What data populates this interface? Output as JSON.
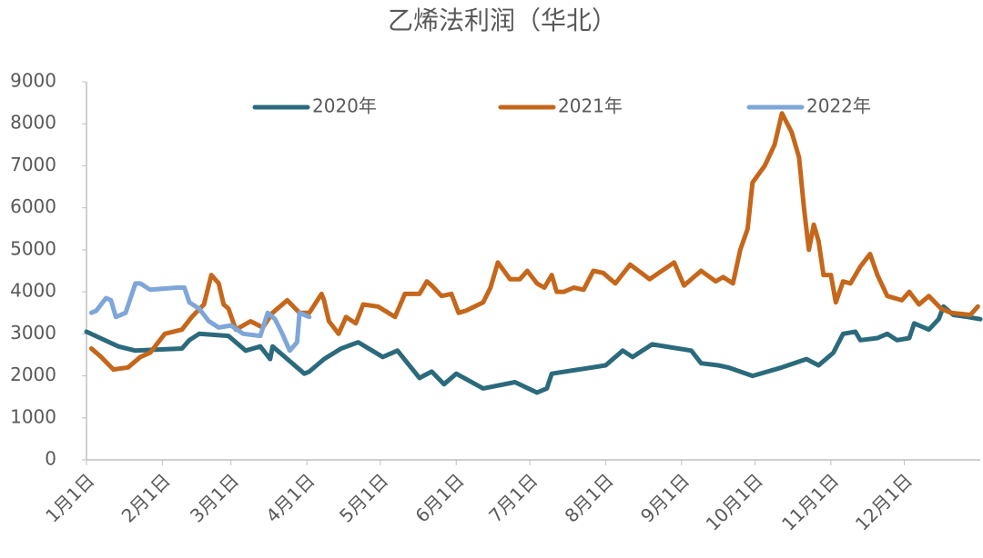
{
  "chart_data": {
    "type": "line",
    "title": "乙烯法利润（华北）",
    "xlim": [
      0,
      365
    ],
    "xticks": [
      {
        "value": 0,
        "label": "1月1日"
      },
      {
        "value": 31,
        "label": "2月1日"
      },
      {
        "value": 59,
        "label": "3月1日"
      },
      {
        "value": 90,
        "label": "4月1日"
      },
      {
        "value": 120,
        "label": "5月1日"
      },
      {
        "value": 151,
        "label": "6月1日"
      },
      {
        "value": 181,
        "label": "7月1日"
      },
      {
        "value": 212,
        "label": "8月1日"
      },
      {
        "value": 243,
        "label": "9月1日"
      },
      {
        "value": 273,
        "label": "10月1日"
      },
      {
        "value": 304,
        "label": "11月1日"
      },
      {
        "value": 334,
        "label": "12月1日"
      }
    ],
    "ylim": [
      0,
      9000
    ],
    "yticks": [
      0,
      1000,
      2000,
      3000,
      4000,
      5000,
      6000,
      7000,
      8000,
      9000
    ],
    "grid": false,
    "legend": "top",
    "series": [
      {
        "name": "2020年",
        "color": "#2b6a7c",
        "x": [
          0,
          13,
          20,
          39,
          42,
          46,
          58,
          65,
          71,
          75,
          76,
          80,
          84,
          89,
          91,
          97,
          104,
          111,
          121,
          127,
          136,
          141,
          146,
          151,
          162,
          175,
          184,
          188,
          190,
          212,
          219,
          223,
          231,
          247,
          251,
          258,
          262,
          272,
          284,
          294,
          299,
          305,
          309,
          314,
          316,
          323,
          327,
          331,
          336,
          338,
          344,
          348,
          350,
          354,
          360,
          365
        ],
        "values": [
          3050,
          2700,
          2600,
          2650,
          2850,
          3000,
          2950,
          2600,
          2700,
          2400,
          2700,
          2500,
          2300,
          2050,
          2100,
          2400,
          2650,
          2800,
          2450,
          2600,
          1950,
          2100,
          1800,
          2050,
          1700,
          1850,
          1600,
          1700,
          2050,
          2250,
          2600,
          2450,
          2750,
          2600,
          2300,
          2250,
          2200,
          2000,
          2200,
          2400,
          2250,
          2550,
          3000,
          3050,
          2850,
          2900,
          3000,
          2850,
          2900,
          3250,
          3100,
          3350,
          3650,
          3450,
          3400,
          3350
        ]
      },
      {
        "name": "2021年",
        "color": "#c5671b",
        "x": [
          2,
          6,
          11,
          17,
          22,
          26,
          32,
          39,
          43,
          48,
          51,
          54,
          56,
          58,
          61,
          67,
          72,
          76,
          82,
          87,
          91,
          96,
          97,
          99,
          103,
          106,
          110,
          113,
          119,
          126,
          130,
          136,
          139,
          141,
          145,
          149,
          152,
          155,
          162,
          165,
          168,
          173,
          177,
          180,
          184,
          187,
          190,
          192,
          195,
          199,
          203,
          207,
          211,
          216,
          222,
          230,
          240,
          244,
          247,
          251,
          257,
          260,
          264,
          267,
          270,
          272,
          277,
          281,
          284,
          288,
          291,
          293,
          295,
          297,
          299,
          301,
          304,
          306,
          309,
          312,
          316,
          320,
          323,
          327,
          333,
          336,
          340,
          344,
          349,
          353,
          361,
          364
        ],
        "values": [
          2650,
          2450,
          2150,
          2200,
          2450,
          2550,
          3000,
          3100,
          3400,
          3700,
          4400,
          4200,
          3700,
          3600,
          3100,
          3300,
          3150,
          3500,
          3800,
          3500,
          3500,
          3950,
          3800,
          3300,
          3000,
          3400,
          3250,
          3700,
          3650,
          3400,
          3950,
          3950,
          4250,
          4150,
          3900,
          3950,
          3500,
          3550,
          3750,
          4100,
          4700,
          4300,
          4300,
          4500,
          4200,
          4100,
          4400,
          4000,
          4000,
          4100,
          4050,
          4500,
          4450,
          4200,
          4650,
          4300,
          4700,
          4150,
          4300,
          4500,
          4250,
          4350,
          4200,
          5000,
          5500,
          6600,
          7000,
          7500,
          8250,
          7800,
          7200,
          6000,
          5000,
          5600,
          5200,
          4400,
          4400,
          3750,
          4250,
          4200,
          4600,
          4900,
          4400,
          3900,
          3800,
          4000,
          3700,
          3900,
          3600,
          3500,
          3450,
          3650
        ]
      },
      {
        "name": "2022年",
        "color": "#7ea6d8",
        "x": [
          2,
          4,
          8,
          10,
          12,
          16,
          20,
          22,
          26,
          37,
          40,
          42,
          46,
          50,
          54,
          59,
          64,
          71,
          74,
          77,
          80,
          83,
          86,
          87,
          91
        ],
        "values": [
          3500,
          3550,
          3850,
          3800,
          3400,
          3500,
          4200,
          4200,
          4050,
          4100,
          4100,
          3750,
          3600,
          3300,
          3150,
          3200,
          3000,
          2950,
          3500,
          3350,
          3000,
          2600,
          2800,
          3500,
          3400
        ]
      }
    ]
  }
}
